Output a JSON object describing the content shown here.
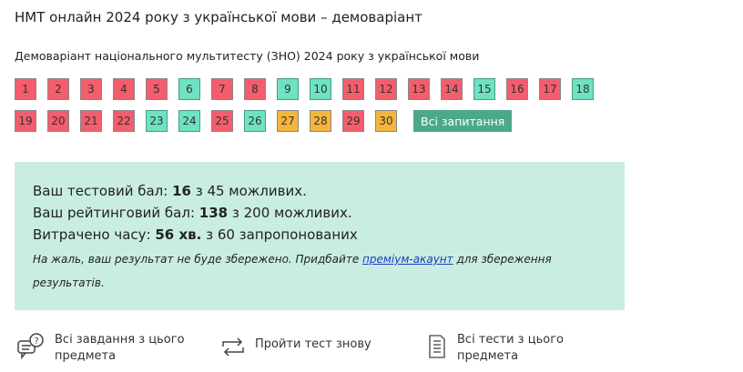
{
  "title": "НМТ онлайн 2024 року з української мови – демоваріант",
  "subtitle": "Демоваріант національного мультитесту (ЗНО) 2024 року з української мови",
  "colors": {
    "wrong": "#f35d6d",
    "correct": "#6ee2c2",
    "partial": "#f4b53d",
    "accent": "#4aa98a",
    "result_bg": "#c9ede1"
  },
  "questions": [
    {
      "n": "1",
      "s": "wrong"
    },
    {
      "n": "2",
      "s": "wrong"
    },
    {
      "n": "3",
      "s": "wrong"
    },
    {
      "n": "4",
      "s": "wrong"
    },
    {
      "n": "5",
      "s": "wrong"
    },
    {
      "n": "6",
      "s": "correct"
    },
    {
      "n": "7",
      "s": "wrong"
    },
    {
      "n": "8",
      "s": "wrong"
    },
    {
      "n": "9",
      "s": "correct"
    },
    {
      "n": "10",
      "s": "correct"
    },
    {
      "n": "11",
      "s": "wrong"
    },
    {
      "n": "12",
      "s": "wrong"
    },
    {
      "n": "13",
      "s": "wrong"
    },
    {
      "n": "14",
      "s": "wrong"
    },
    {
      "n": "15",
      "s": "correct"
    },
    {
      "n": "16",
      "s": "wrong"
    },
    {
      "n": "17",
      "s": "wrong"
    },
    {
      "n": "18",
      "s": "correct"
    },
    {
      "n": "19",
      "s": "wrong"
    },
    {
      "n": "20",
      "s": "wrong"
    },
    {
      "n": "21",
      "s": "wrong"
    },
    {
      "n": "22",
      "s": "wrong"
    },
    {
      "n": "23",
      "s": "correct"
    },
    {
      "n": "24",
      "s": "correct"
    },
    {
      "n": "25",
      "s": "wrong"
    },
    {
      "n": "26",
      "s": "correct"
    },
    {
      "n": "27",
      "s": "partial"
    },
    {
      "n": "28",
      "s": "partial"
    },
    {
      "n": "29",
      "s": "wrong"
    },
    {
      "n": "30",
      "s": "partial"
    }
  ],
  "all_questions_label": "Всі запитання",
  "result": {
    "test_score_pre": "Ваш тестовий бал: ",
    "test_score": "16",
    "test_score_post": " з 45 можливих.",
    "rating_pre": "Ваш рейтинговий бал: ",
    "rating": "138",
    "rating_post": " з 200 можливих.",
    "time_pre": "Витрачено часу: ",
    "time": "56 хв.",
    "time_post": " з 60 запропонованих",
    "note_pre": "На жаль, ваш результат не буде збережено. Придбайте ",
    "note_link": "преміум-акаунт",
    "note_post": " для збереження результатів."
  },
  "actions": [
    {
      "icon": "question-chat-icon",
      "label": "Всі завдання з цього предмета"
    },
    {
      "icon": "repeat-icon",
      "label": "Пройти тест знову"
    },
    {
      "icon": "document-icon",
      "label": "Всі тести з цього предмета"
    }
  ]
}
